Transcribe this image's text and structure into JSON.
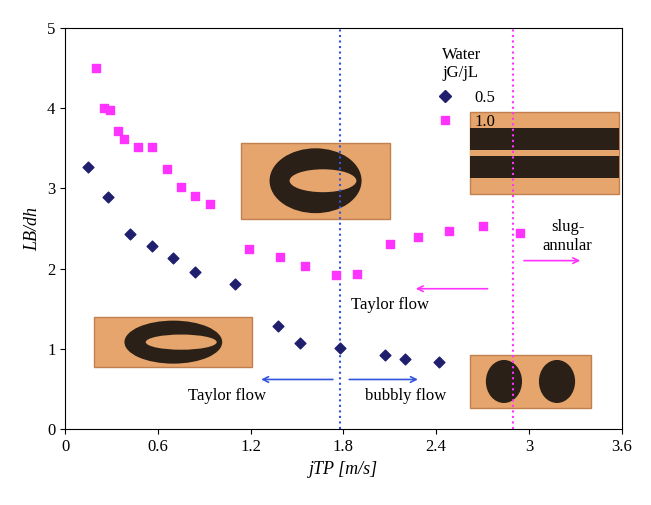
{
  "chart_data": {
    "type": "scatter",
    "x_label": "jTP [m/s]",
    "y_label": "LB/dh",
    "legend_title": [
      "Water",
      "jG/jL"
    ],
    "legend": "upper right",
    "grid": false,
    "xlim": [
      0,
      3.6
    ],
    "xticks": [
      0,
      0.6,
      1.2,
      1.8,
      2.4,
      3,
      3.6
    ],
    "ylim": [
      0,
      5
    ],
    "yticks": [
      0,
      1,
      2,
      3,
      4,
      5
    ],
    "series": [
      {
        "name": "0.5",
        "color": "#1f1f6e",
        "marker": "diamond",
        "x": [
          0.15,
          0.28,
          0.42,
          0.56,
          0.7,
          0.84,
          1.1,
          1.38,
          1.52,
          1.78,
          2.07,
          2.2,
          2.42
        ],
        "values": [
          3.27,
          2.89,
          2.43,
          2.28,
          2.13,
          1.96,
          1.81,
          1.29,
          1.08,
          1.01,
          0.93,
          0.88,
          0.84
        ]
      },
      {
        "name": "1.0",
        "color": "#ff33ff",
        "marker": "square",
        "x": [
          0.2,
          0.25,
          0.29,
          0.34,
          0.38,
          0.47,
          0.56,
          0.66,
          0.75,
          0.84,
          0.94,
          1.19,
          1.39,
          1.55,
          1.75,
          1.89,
          2.1,
          2.28,
          2.48,
          2.7,
          2.94
        ],
        "values": [
          4.5,
          4.0,
          3.97,
          3.71,
          3.62,
          3.52,
          3.51,
          3.24,
          3.02,
          2.91,
          2.81,
          2.25,
          2.14,
          2.03,
          1.92,
          1.93,
          2.31,
          2.4,
          2.47,
          2.53,
          2.44
        ]
      }
    ],
    "boundaries": [
      {
        "x": 1.78,
        "color": "#3355dd"
      },
      {
        "x": 2.9,
        "color": "#ff33ff"
      }
    ],
    "annotations": [
      {
        "text": "Taylor flow",
        "color": "#3355dd"
      },
      {
        "text": "bubbly flow",
        "color": "#3355dd"
      },
      {
        "text": "Taylor flow",
        "color": "#ff33ff"
      },
      {
        "text": "slug-\nannular",
        "color": "#ff33ff"
      }
    ]
  }
}
